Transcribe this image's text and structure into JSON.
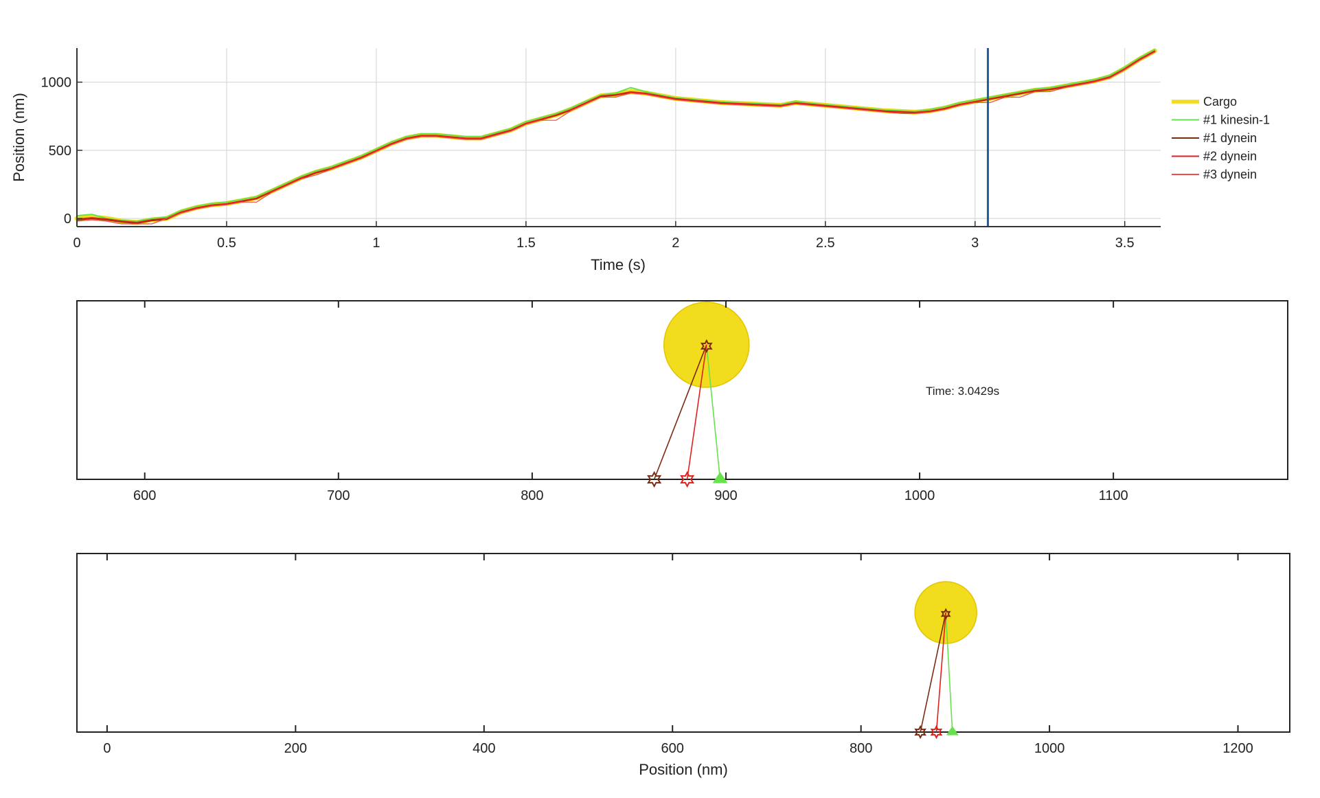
{
  "chart_data": [
    {
      "type": "line",
      "panel": "timeseries",
      "title": "",
      "xlabel": "Time (s)",
      "ylabel": "Position (nm)",
      "xlim": [
        0,
        3.62
      ],
      "ylim": [
        -60,
        1250
      ],
      "xticks": [
        0,
        0.5,
        1,
        1.5,
        2,
        2.5,
        3,
        3.5
      ],
      "yticks": [
        0,
        500,
        1000
      ],
      "grid": true,
      "legend_position": "right",
      "current_time_marker": 3.0429,
      "x": [
        0,
        0.05,
        0.1,
        0.15,
        0.2,
        0.25,
        0.3,
        0.35,
        0.4,
        0.45,
        0.5,
        0.55,
        0.6,
        0.65,
        0.7,
        0.75,
        0.8,
        0.85,
        0.9,
        0.95,
        1.0,
        1.05,
        1.1,
        1.15,
        1.2,
        1.25,
        1.3,
        1.35,
        1.4,
        1.45,
        1.5,
        1.55,
        1.6,
        1.65,
        1.7,
        1.75,
        1.8,
        1.85,
        1.9,
        1.95,
        2.0,
        2.05,
        2.1,
        2.15,
        2.2,
        2.25,
        2.3,
        2.35,
        2.4,
        2.45,
        2.5,
        2.55,
        2.6,
        2.65,
        2.7,
        2.75,
        2.8,
        2.85,
        2.9,
        2.95,
        3.0,
        3.05,
        3.1,
        3.15,
        3.2,
        3.25,
        3.3,
        3.35,
        3.4,
        3.45,
        3.5,
        3.55,
        3.6
      ],
      "series": [
        {
          "name": "Cargo",
          "color": "#f2dc1e",
          "width": 7,
          "values": [
            0,
            10,
            0,
            -20,
            -30,
            -10,
            0,
            50,
            80,
            100,
            110,
            130,
            150,
            200,
            250,
            300,
            340,
            370,
            410,
            450,
            500,
            550,
            590,
            610,
            610,
            600,
            590,
            590,
            620,
            650,
            700,
            730,
            760,
            800,
            850,
            900,
            910,
            930,
            920,
            900,
            880,
            870,
            860,
            850,
            845,
            840,
            835,
            830,
            850,
            840,
            830,
            820,
            810,
            800,
            790,
            785,
            780,
            790,
            810,
            840,
            860,
            880,
            900,
            920,
            940,
            950,
            970,
            990,
            1010,
            1040,
            1100,
            1170,
            1230
          ]
        },
        {
          "name": "#1 kinesin-1",
          "color": "#66e24d",
          "width": 2,
          "values": [
            20,
            30,
            0,
            -15,
            -20,
            0,
            10,
            60,
            90,
            110,
            120,
            140,
            160,
            210,
            260,
            310,
            350,
            380,
            420,
            460,
            510,
            560,
            600,
            620,
            620,
            610,
            600,
            600,
            630,
            660,
            710,
            740,
            770,
            810,
            860,
            905,
            920,
            960,
            930,
            905,
            885,
            875,
            865,
            855,
            850,
            845,
            840,
            835,
            860,
            845,
            835,
            825,
            815,
            805,
            795,
            790,
            785,
            800,
            820,
            850,
            870,
            890,
            910,
            930,
            950,
            960,
            980,
            1000,
            1020,
            1050,
            1110,
            1180,
            1240
          ]
        },
        {
          "name": "#1 dynein",
          "color": "#7a2a10",
          "width": 2,
          "values": [
            -10,
            0,
            -10,
            -25,
            -35,
            -15,
            -5,
            45,
            75,
            95,
            105,
            125,
            145,
            195,
            245,
            295,
            335,
            365,
            405,
            445,
            495,
            545,
            585,
            605,
            605,
            595,
            585,
            585,
            615,
            645,
            695,
            725,
            755,
            795,
            845,
            895,
            905,
            925,
            915,
            895,
            875,
            865,
            855,
            845,
            840,
            835,
            830,
            825,
            845,
            835,
            825,
            815,
            805,
            795,
            785,
            780,
            775,
            785,
            805,
            835,
            855,
            875,
            895,
            915,
            935,
            945,
            965,
            985,
            1005,
            1035,
            1095,
            1165,
            1225
          ]
        },
        {
          "name": "#2 dynein",
          "color": "#e0201c",
          "width": 2,
          "values": [
            -5,
            5,
            -5,
            -20,
            -30,
            -10,
            0,
            48,
            78,
            98,
            108,
            128,
            148,
            198,
            248,
            298,
            338,
            368,
            408,
            448,
            498,
            548,
            588,
            608,
            608,
            598,
            588,
            588,
            618,
            648,
            698,
            728,
            758,
            798,
            848,
            898,
            908,
            928,
            918,
            898,
            878,
            868,
            858,
            848,
            843,
            838,
            833,
            828,
            848,
            838,
            828,
            818,
            808,
            798,
            788,
            783,
            778,
            788,
            808,
            838,
            858,
            878,
            898,
            918,
            938,
            948,
            968,
            988,
            1008,
            1038,
            1098,
            1168,
            1228
          ]
        },
        {
          "name": "#3 dynein",
          "color": "#f04a4a",
          "width": 1.2,
          "values": [
            -20,
            -10,
            -20,
            -40,
            -40,
            -40,
            0,
            40,
            70,
            90,
            100,
            120,
            120,
            190,
            240,
            290,
            320,
            360,
            400,
            440,
            490,
            540,
            580,
            600,
            600,
            590,
            580,
            580,
            610,
            640,
            690,
            720,
            720,
            790,
            840,
            890,
            890,
            920,
            910,
            890,
            870,
            860,
            850,
            840,
            835,
            830,
            825,
            820,
            840,
            830,
            820,
            810,
            800,
            790,
            780,
            770,
            770,
            780,
            800,
            830,
            850,
            850,
            890,
            890,
            930,
            930,
            960,
            980,
            1000,
            1030,
            1090,
            1160,
            1220
          ]
        }
      ]
    },
    {
      "type": "scatter",
      "panel": "snapshot-zoomed",
      "title": "",
      "xlabel": "",
      "ylabel": "",
      "xlim": [
        565,
        1190
      ],
      "xticks": [
        600,
        700,
        800,
        900,
        1000,
        1100
      ],
      "time_label": "Time: 3.0429s",
      "cargo": {
        "x": 890,
        "radius": 22,
        "color": "#f2dc1e"
      },
      "motors": [
        {
          "name": "#1 kinesin-1",
          "x": 897,
          "color": "#66e24d",
          "marker": "triangle"
        },
        {
          "name": "#1 dynein",
          "x": 863,
          "color": "#7a2a10",
          "marker": "hexagram"
        },
        {
          "name": "#2 dynein",
          "x": 880,
          "color": "#e0201c",
          "marker": "hexagram"
        }
      ]
    },
    {
      "type": "scatter",
      "panel": "snapshot-full",
      "title": "",
      "xlabel": "Position (nm)",
      "ylabel": "",
      "xlim": [
        -32,
        1255
      ],
      "xticks": [
        0,
        200,
        400,
        600,
        800,
        1000,
        1200
      ],
      "cargo": {
        "x": 890,
        "radius": 33,
        "color": "#f2dc1e"
      },
      "motors": [
        {
          "name": "#1 kinesin-1",
          "x": 897,
          "color": "#66e24d",
          "marker": "triangle"
        },
        {
          "name": "#1 dynein",
          "x": 863,
          "color": "#7a2a10",
          "marker": "hexagram"
        },
        {
          "name": "#2 dynein",
          "x": 880,
          "color": "#e0201c",
          "marker": "hexagram"
        }
      ]
    }
  ]
}
